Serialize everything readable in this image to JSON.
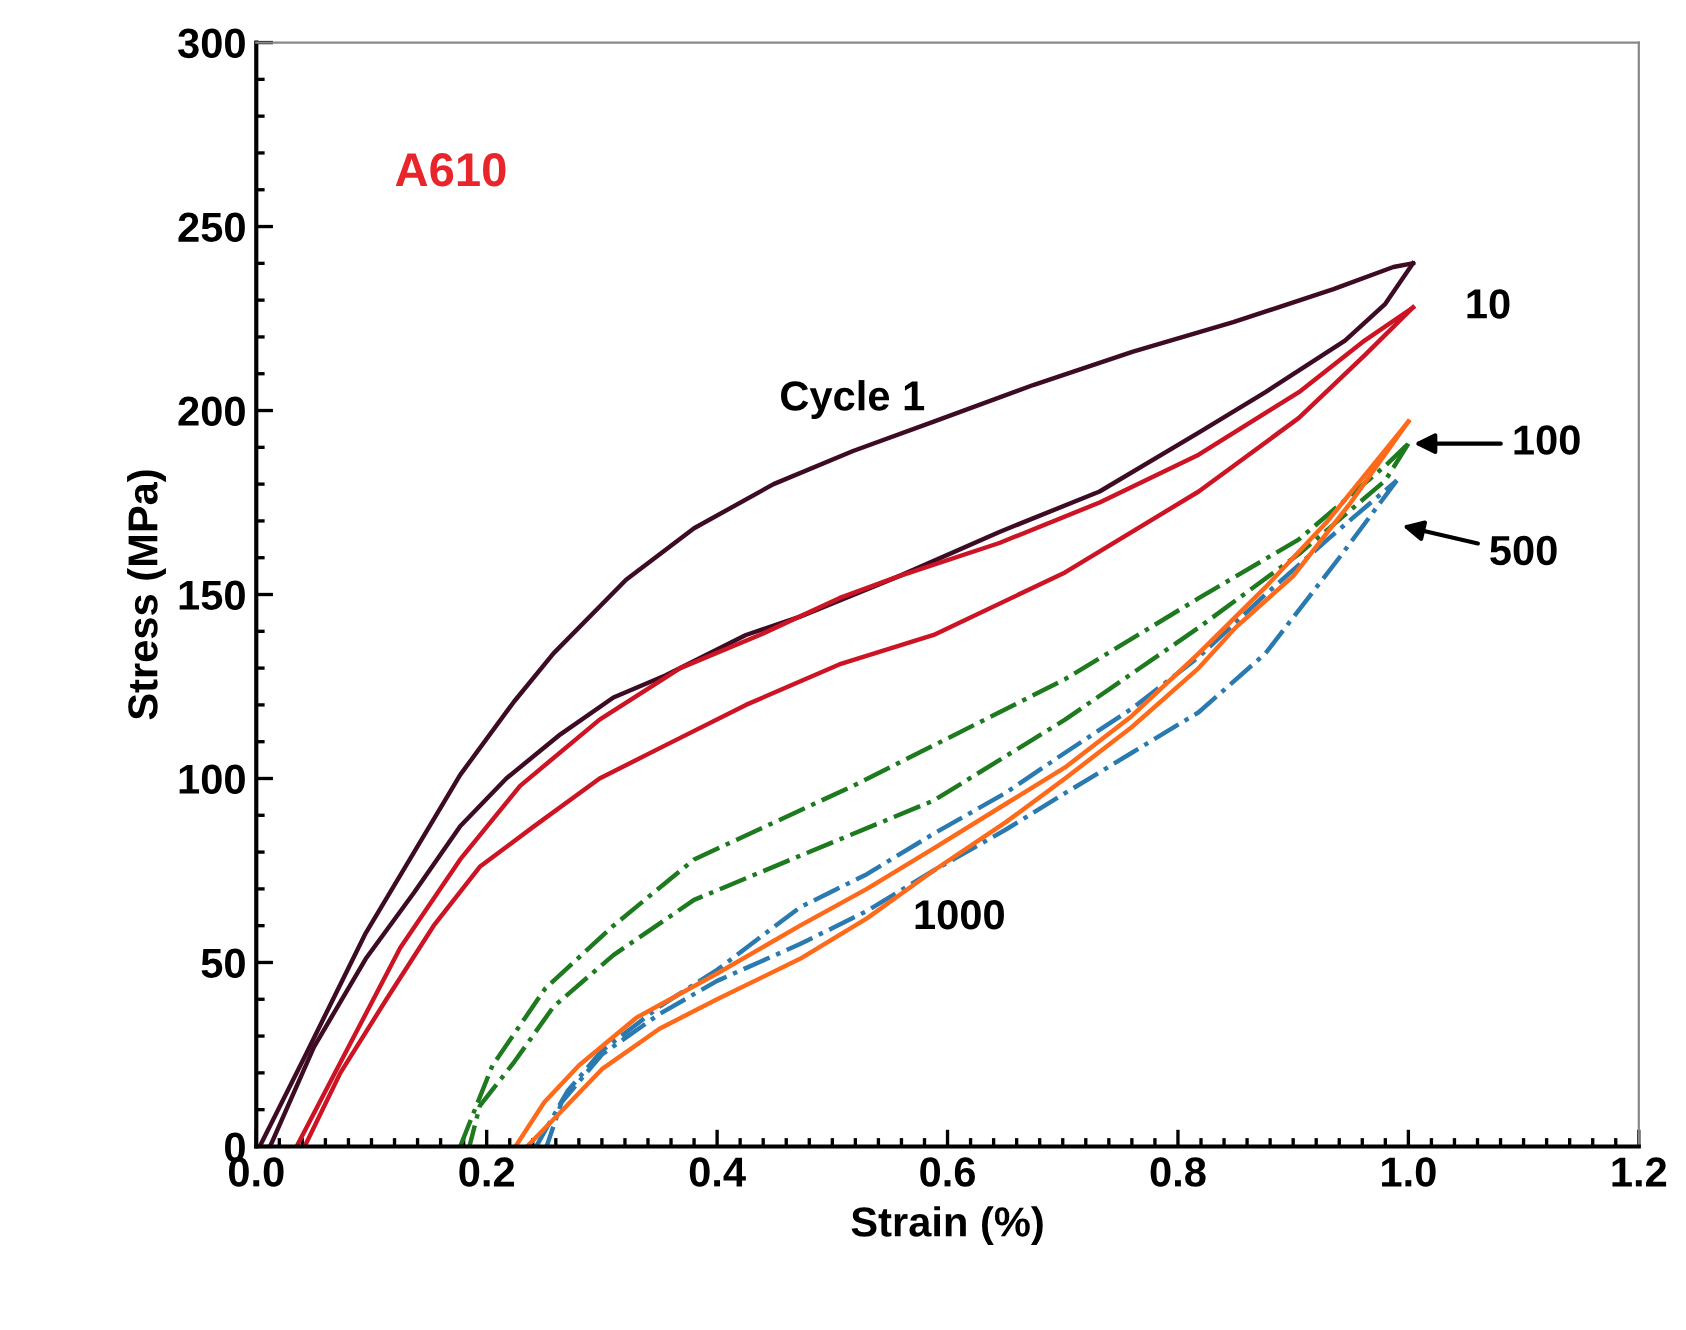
{
  "chart_data": {
    "type": "line",
    "xlabel": "Strain (%)",
    "ylabel": "Stress (MPa)",
    "xlim": [
      0,
      1.2
    ],
    "ylim": [
      0,
      300
    ],
    "xticks": [
      {
        "value": 0,
        "label": "0.0"
      },
      {
        "value": 0.2,
        "label": "0.2"
      },
      {
        "value": 0.4,
        "label": "0.4"
      },
      {
        "value": 0.6,
        "label": "0.6"
      },
      {
        "value": 0.8,
        "label": "0.8"
      },
      {
        "value": 1.0,
        "label": "1.0"
      },
      {
        "value": 1.2,
        "label": "1.2"
      }
    ],
    "yticks": [
      0,
      50,
      100,
      150,
      200,
      250,
      300
    ],
    "grid": false,
    "legend": false,
    "marker": "none",
    "annotations": [
      "A610"
    ],
    "series": [
      {
        "name": "Cycle 1",
        "color": "#3d0c24",
        "line_style": "solid",
        "x": [
          0.003,
          0.043,
          0.095,
          0.137,
          0.177,
          0.224,
          0.258,
          0.321,
          0.38,
          0.449,
          0.518,
          0.588,
          0.675,
          0.761,
          0.848,
          0.935,
          0.987,
          1.004
        ],
        "values": [
          0,
          25,
          58,
          80,
          101,
          121,
          134,
          154,
          168,
          180,
          189,
          197,
          207,
          216,
          224,
          233,
          239,
          240
        ]
      },
      {
        "color": "#3d0c24",
        "line_style": "solid",
        "x": [
          1.004,
          0.98,
          0.945,
          0.876,
          0.818,
          0.732,
          0.645,
          0.558,
          0.472,
          0.425,
          0.355,
          0.31,
          0.264,
          0.217,
          0.177,
          0.137,
          0.095,
          0.05,
          0.012
        ],
        "values": [
          240,
          229,
          219,
          205,
          194,
          178,
          167,
          155,
          144,
          139,
          128,
          122,
          112,
          100,
          87,
          69,
          51,
          27,
          0
        ]
      },
      {
        "name": "10",
        "color": "#cc1424",
        "line_style": "solid",
        "x": [
          0.035,
          0.085,
          0.125,
          0.177,
          0.229,
          0.298,
          0.368,
          0.437,
          0.506,
          0.558,
          0.645,
          0.732,
          0.818,
          0.905,
          0.962,
          1.004
        ],
        "values": [
          0,
          30,
          54,
          78,
          98,
          116,
          130,
          139,
          149,
          155,
          164,
          175,
          188,
          205,
          219,
          228
        ]
      },
      {
        "color": "#cc1424",
        "line_style": "solid",
        "x": [
          1.004,
          0.962,
          0.905,
          0.818,
          0.702,
          0.588,
          0.506,
          0.425,
          0.355,
          0.298,
          0.241,
          0.194,
          0.154,
          0.113,
          0.073,
          0.042
        ],
        "values": [
          228,
          215,
          198,
          178,
          156,
          139,
          131,
          120,
          109,
          100,
          87,
          76,
          60,
          40,
          20,
          0
        ]
      },
      {
        "name": "100",
        "color": "#1e7a1e",
        "line_style": "dashdot",
        "x": [
          0.177,
          0.205,
          0.251,
          0.31,
          0.38,
          0.449,
          0.518,
          0.588,
          0.702,
          0.818,
          0.905,
          0.98,
          1.0
        ],
        "values": [
          0,
          22,
          43,
          60,
          78,
          88,
          98,
          109,
          127,
          149,
          165,
          185,
          191
        ]
      },
      {
        "color": "#1e7a1e",
        "line_style": "dashdot",
        "x": [
          1.0,
          0.98,
          0.905,
          0.818,
          0.702,
          0.588,
          0.472,
          0.38,
          0.31,
          0.258,
          0.224,
          0.194,
          0.185
        ],
        "values": [
          191,
          181,
          161,
          141,
          116,
          94,
          79,
          67,
          52,
          38,
          23,
          11,
          0
        ]
      },
      {
        "name": "500",
        "color": "#2a7ab0",
        "line_style": "dashdot",
        "x": [
          0.243,
          0.27,
          0.3,
          0.35,
          0.4,
          0.472,
          0.53,
          0.588,
          0.65,
          0.702,
          0.76,
          0.818,
          0.876,
          0.93,
          0.99
        ],
        "values": [
          0,
          15,
          26,
          38,
          48,
          65,
          74,
          85,
          96,
          107,
          119,
          133,
          150,
          165,
          181
        ]
      },
      {
        "color": "#2a7ab0",
        "line_style": "dashdot",
        "x": [
          0.99,
          0.94,
          0.876,
          0.818,
          0.76,
          0.702,
          0.65,
          0.588,
          0.53,
          0.472,
          0.4,
          0.35,
          0.3,
          0.265,
          0.252
        ],
        "values": [
          181,
          160,
          134,
          118,
          107,
          96,
          86,
          75,
          64,
          55,
          45,
          36,
          25,
          12,
          0
        ]
      },
      {
        "name": "1000",
        "color": "#ff6a1a",
        "line_style": "solid",
        "x": [
          0.225,
          0.25,
          0.28,
          0.33,
          0.4,
          0.472,
          0.53,
          0.588,
          0.65,
          0.702,
          0.76,
          0.818,
          0.876,
          0.93,
          1.0
        ],
        "values": [
          0,
          12,
          22,
          35,
          47,
          60,
          70,
          81,
          93,
          103,
          117,
          134,
          152,
          170,
          197
        ]
      },
      {
        "color": "#ff6a1a",
        "line_style": "solid",
        "x": [
          1.0,
          0.95,
          0.9,
          0.85,
          0.818,
          0.76,
          0.702,
          0.65,
          0.588,
          0.53,
          0.472,
          0.4,
          0.35,
          0.3,
          0.26,
          0.235
        ],
        "values": [
          197,
          175,
          155,
          141,
          130,
          114,
          100,
          88,
          75,
          62,
          51,
          40,
          32,
          21,
          8,
          0
        ]
      }
    ]
  }
}
